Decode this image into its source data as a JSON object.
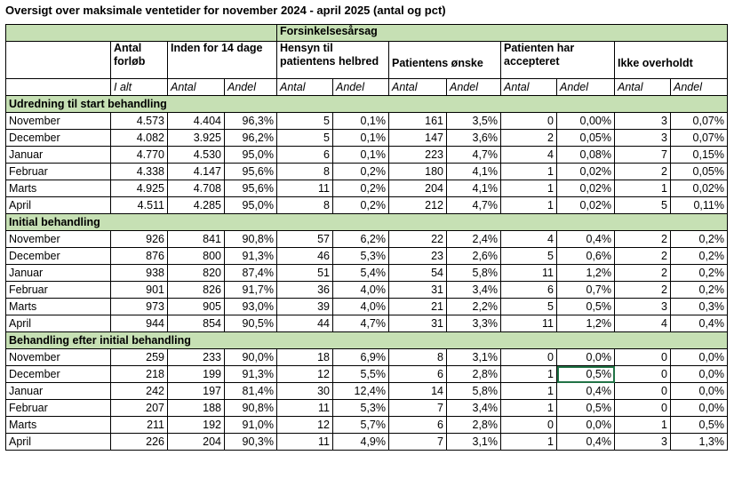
{
  "title": "Oversigt over maksimale ventetider for november 2024 - april 2025 (antal og pct)",
  "header": {
    "group": "Forsinkelsesårsag",
    "cols": {
      "antal_forlob": "Antal forløb",
      "inden_14": "Inden for 14 dage",
      "hensyn": "Hensyn til patientens helbred",
      "onske": "Patientens ønske",
      "accepteret": "Patienten har accepteret",
      "ikke_overholdt": "Ikke overholdt"
    },
    "sub": [
      "I alt",
      "Antal",
      "Andel",
      "Antal",
      "Andel",
      "Antal",
      "Andel",
      "Antal",
      "Andel",
      "Antal",
      "Andel"
    ]
  },
  "sections": [
    {
      "name": "Udredning til start behandling",
      "rows": [
        [
          "November",
          "4.573",
          "4.404",
          "96,3%",
          "5",
          "0,1%",
          "161",
          "3,5%",
          "0",
          "0,00%",
          "3",
          "0,07%"
        ],
        [
          "December",
          "4.082",
          "3.925",
          "96,2%",
          "5",
          "0,1%",
          "147",
          "3,6%",
          "2",
          "0,05%",
          "3",
          "0,07%"
        ],
        [
          "Januar",
          "4.770",
          "4.530",
          "95,0%",
          "6",
          "0,1%",
          "223",
          "4,7%",
          "4",
          "0,08%",
          "7",
          "0,15%"
        ],
        [
          "Februar",
          "4.338",
          "4.147",
          "95,6%",
          "8",
          "0,2%",
          "180",
          "4,1%",
          "1",
          "0,02%",
          "2",
          "0,05%"
        ],
        [
          "Marts",
          "4.925",
          "4.708",
          "95,6%",
          "11",
          "0,2%",
          "204",
          "4,1%",
          "1",
          "0,02%",
          "1",
          "0,02%"
        ],
        [
          "April",
          "4.511",
          "4.285",
          "95,0%",
          "8",
          "0,2%",
          "212",
          "4,7%",
          "1",
          "0,02%",
          "5",
          "0,11%"
        ]
      ]
    },
    {
      "name": "Initial behandling",
      "rows": [
        [
          "November",
          "926",
          "841",
          "90,8%",
          "57",
          "6,2%",
          "22",
          "2,4%",
          "4",
          "0,4%",
          "2",
          "0,2%"
        ],
        [
          "December",
          "876",
          "800",
          "91,3%",
          "46",
          "5,3%",
          "23",
          "2,6%",
          "5",
          "0,6%",
          "2",
          "0,2%"
        ],
        [
          "Januar",
          "938",
          "820",
          "87,4%",
          "51",
          "5,4%",
          "54",
          "5,8%",
          "11",
          "1,2%",
          "2",
          "0,2%"
        ],
        [
          "Februar",
          "901",
          "826",
          "91,7%",
          "36",
          "4,0%",
          "31",
          "3,4%",
          "6",
          "0,7%",
          "2",
          "0,2%"
        ],
        [
          "Marts",
          "973",
          "905",
          "93,0%",
          "39",
          "4,0%",
          "21",
          "2,2%",
          "5",
          "0,5%",
          "3",
          "0,3%"
        ],
        [
          "April",
          "944",
          "854",
          "90,5%",
          "44",
          "4,7%",
          "31",
          "3,3%",
          "11",
          "1,2%",
          "4",
          "0,4%"
        ]
      ]
    },
    {
      "name": "Behandling efter initial behandling",
      "rows": [
        [
          "November",
          "259",
          "233",
          "90,0%",
          "18",
          "6,9%",
          "8",
          "3,1%",
          "0",
          "0,0%",
          "0",
          "0,0%"
        ],
        [
          "December",
          "218",
          "199",
          "91,3%",
          "12",
          "5,5%",
          "6",
          "2,8%",
          "1",
          "0,5%",
          "0",
          "0,0%"
        ],
        [
          "Januar",
          "242",
          "197",
          "81,4%",
          "30",
          "12,4%",
          "14",
          "5,8%",
          "1",
          "0,4%",
          "0",
          "0,0%"
        ],
        [
          "Februar",
          "207",
          "188",
          "90,8%",
          "11",
          "5,3%",
          "7",
          "3,4%",
          "1",
          "0,5%",
          "0",
          "0,0%"
        ],
        [
          "Marts",
          "211",
          "192",
          "91,0%",
          "12",
          "5,7%",
          "6",
          "2,8%",
          "0",
          "0,0%",
          "1",
          "0,5%"
        ],
        [
          "April",
          "226",
          "204",
          "90,3%",
          "11",
          "4,9%",
          "7",
          "3,1%",
          "1",
          "0,4%",
          "3",
          "1,3%"
        ]
      ]
    }
  ],
  "selected_cell": {
    "section": 2,
    "row": 1,
    "col": 9
  }
}
